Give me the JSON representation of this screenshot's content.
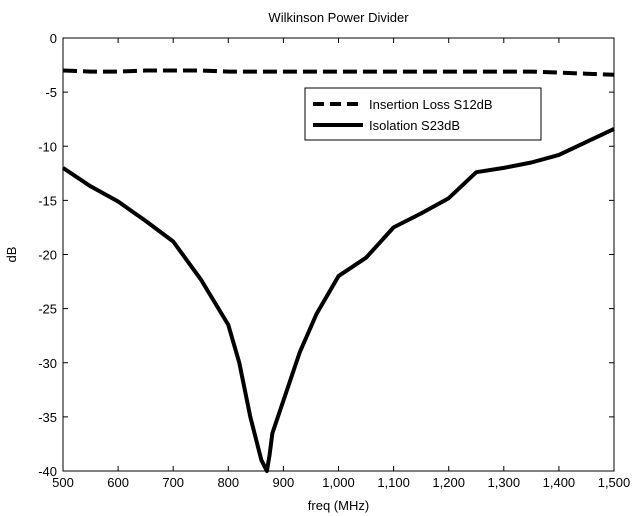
{
  "chart_data": {
    "type": "line",
    "title": "Wilkinson Power Divider",
    "xlabel": "freq (MHz)",
    "ylabel": "dB",
    "xlim": [
      500,
      1500
    ],
    "ylim": [
      -40,
      0
    ],
    "xticks": [
      500,
      600,
      700,
      800,
      900,
      1000,
      1100,
      1200,
      1300,
      1400,
      1500
    ],
    "xtick_labels": [
      "500",
      "600",
      "700",
      "800",
      "900",
      "1,000",
      "1,100",
      "1,200",
      "1,300",
      "1,400",
      "1,500"
    ],
    "yticks": [
      0,
      -5,
      -10,
      -15,
      -20,
      -25,
      -30,
      -35,
      -40
    ],
    "ytick_labels": [
      "0",
      "-5",
      "-10",
      "-15",
      "-20",
      "-25",
      "-30",
      "-35",
      "-40"
    ],
    "grid": false,
    "legend_position": "top-right",
    "series": [
      {
        "name": "Insertion Loss S12dB",
        "style": "dashed",
        "color": "#000000",
        "x": [
          500,
          550,
          600,
          650,
          700,
          750,
          800,
          850,
          900,
          950,
          1000,
          1050,
          1100,
          1150,
          1200,
          1250,
          1300,
          1350,
          1400,
          1450,
          1500
        ],
        "y": [
          -3.0,
          -3.1,
          -3.1,
          -3.0,
          -3.0,
          -3.0,
          -3.1,
          -3.1,
          -3.1,
          -3.1,
          -3.1,
          -3.1,
          -3.1,
          -3.1,
          -3.1,
          -3.1,
          -3.1,
          -3.1,
          -3.2,
          -3.3,
          -3.4
        ]
      },
      {
        "name": "Isolation S23dB",
        "style": "solid",
        "color": "#000000",
        "x": [
          500,
          550,
          600,
          650,
          700,
          750,
          800,
          820,
          840,
          860,
          870,
          875,
          880,
          900,
          930,
          960,
          1000,
          1050,
          1100,
          1150,
          1200,
          1250,
          1300,
          1350,
          1400,
          1450,
          1500
        ],
        "y": [
          -12.0,
          -13.7,
          -15.1,
          -16.9,
          -18.8,
          -22.3,
          -26.5,
          -30.0,
          -35.0,
          -39.0,
          -40.0,
          -38.5,
          -36.5,
          -33.5,
          -29.0,
          -25.5,
          -22.0,
          -20.3,
          -17.5,
          -16.2,
          -14.8,
          -12.4,
          -12.0,
          -11.5,
          -10.8,
          -9.6,
          -8.4
        ]
      }
    ]
  }
}
